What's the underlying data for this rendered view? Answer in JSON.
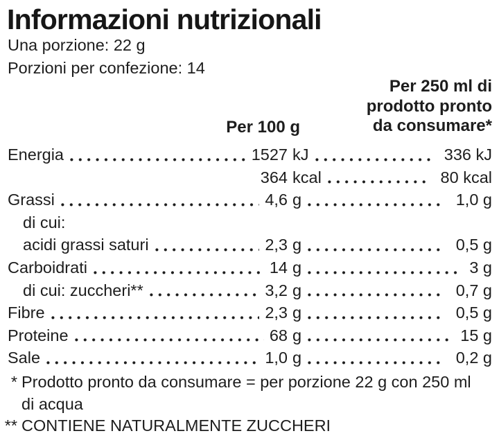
{
  "title": "Informazioni nutrizionali",
  "serving": {
    "per_serving": "Una porzione: 22 g",
    "per_pack": "Porzioni per confezione: 14"
  },
  "columns": {
    "per_100g": "Per 100 g",
    "per_250ml_lines": [
      "Per 250 ml di",
      "prodotto pronto",
      "da consumare*"
    ]
  },
  "rows": [
    {
      "label": "Energia",
      "num": "1527",
      "unit": "kJ",
      "val2": "336 kJ"
    },
    {
      "label": "",
      "num": "364",
      "unit": "kcal",
      "val2": "80 kcal"
    },
    {
      "label": "Grassi",
      "num": "4,6",
      "unit": "g",
      "val2": "1,0 g"
    },
    {
      "label": "di cui:",
      "num": "",
      "unit": "",
      "val2": ""
    },
    {
      "label": "acidi grassi saturi",
      "num": "2,3",
      "unit": "g",
      "val2": "0,5 g"
    },
    {
      "label": "Carboidrati",
      "num": "14",
      "unit": "g",
      "val2": "3 g"
    },
    {
      "label": "di cui: zuccheri**",
      "num": "3,2",
      "unit": "g",
      "val2": "0,7 g"
    },
    {
      "label": "Fibre",
      "num": "2,3",
      "unit": "g",
      "val2": "0,5 g"
    },
    {
      "label": "Proteine",
      "num": "68",
      "unit": "g",
      "val2": "15 g"
    },
    {
      "label": "Sale",
      "num": "1,0",
      "unit": "g",
      "val2": "0,2 g"
    }
  ],
  "footnotes": [
    {
      "marker": "*",
      "lines": [
        "Prodotto pronto da consumare = per porzione 22 g con 250 ml",
        "di acqua"
      ]
    },
    {
      "marker": "**",
      "lines": [
        "CONTIENE NATURALMENTE ZUCCHERI"
      ]
    }
  ],
  "colors": {
    "text": "#1d1d1d",
    "background": "#ffffff"
  }
}
